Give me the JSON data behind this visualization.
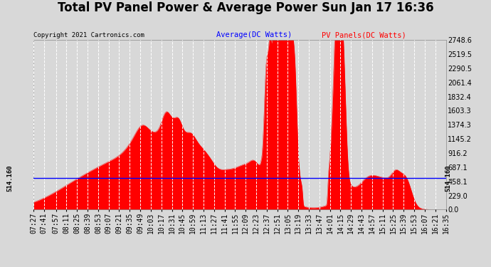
{
  "title": "Total PV Panel Power & Average Power Sun Jan 17 16:36",
  "copyright": "Copyright 2021 Cartronics.com",
  "legend_avg": "Average(DC Watts)",
  "legend_pv": "PV Panels(DC Watts)",
  "y_right_ticks": [
    0.0,
    229.0,
    458.1,
    687.1,
    916.2,
    1145.2,
    1374.3,
    1603.3,
    1832.4,
    2061.4,
    2290.5,
    2519.5,
    2748.6
  ],
  "avg_value": 514.16,
  "avg_label": "514.160",
  "background_color": "#d8d8d8",
  "plot_bg_color": "#d8d8d8",
  "fill_color": "#ff0000",
  "line_color": "#ff0000",
  "avg_line_color": "#0000ff",
  "grid_color": "#ffffff",
  "title_fontsize": 12,
  "tick_fontsize": 7,
  "time_labels": [
    "07:27",
    "07:41",
    "07:57",
    "08:11",
    "08:25",
    "08:39",
    "08:53",
    "09:07",
    "09:21",
    "09:35",
    "09:49",
    "10:03",
    "10:17",
    "10:31",
    "10:45",
    "10:59",
    "11:13",
    "11:27",
    "11:41",
    "11:55",
    "12:09",
    "12:23",
    "12:37",
    "12:51",
    "13:05",
    "13:19",
    "13:33",
    "13:47",
    "14:01",
    "14:15",
    "14:29",
    "14:43",
    "14:57",
    "15:11",
    "15:25",
    "15:39",
    "15:53",
    "16:07",
    "16:21",
    "16:35"
  ]
}
